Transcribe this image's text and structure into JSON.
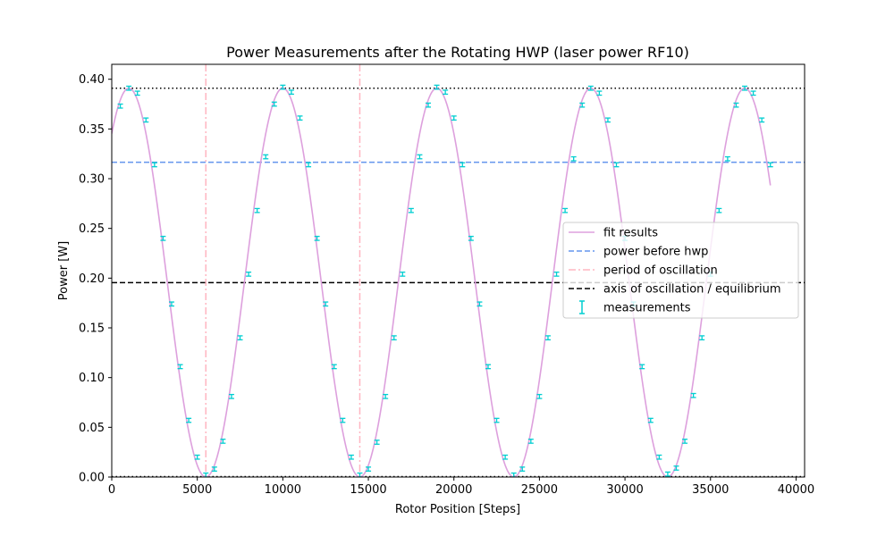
{
  "chart_data": {
    "type": "line",
    "title": "Power Measurements after the Rotating HWP (laser power RF10)",
    "xlabel": "Rotor Position [Steps]",
    "ylabel": "Power [W]",
    "xlim": [
      0,
      40500
    ],
    "ylim": [
      0,
      0.415
    ],
    "xticks": [
      0,
      5000,
      10000,
      15000,
      20000,
      25000,
      30000,
      35000,
      40000
    ],
    "yticks": [
      0.0,
      0.05,
      0.1,
      0.15,
      0.2,
      0.25,
      0.3,
      0.35,
      0.4
    ],
    "xtick_labels": [
      "0",
      "5000",
      "10000",
      "15000",
      "20000",
      "25000",
      "30000",
      "35000",
      "40000"
    ],
    "ytick_labels": [
      "0.00",
      "0.05",
      "0.10",
      "0.15",
      "0.20",
      "0.25",
      "0.30",
      "0.35",
      "0.40"
    ],
    "grid": false,
    "legend_position": "center-right",
    "fit": {
      "name": "fit results",
      "color": "#dda0dd",
      "model": "a*sin(2*pi*(x - phase)/period)+c",
      "amplitude": 0.1955,
      "offset": 0.1955,
      "period": 9000,
      "phase": -1250,
      "x_range": [
        0,
        38500
      ]
    },
    "hlines": [
      {
        "name": "power before hwp",
        "y": 0.3165,
        "color": "#6495ed",
        "style": "dashed"
      },
      {
        "name": "axis of oscillation / equilibrium",
        "y": 0.1955,
        "color": "#000000",
        "style": "dashed"
      },
      {
        "name": "",
        "y": 0.391,
        "color": "#000000",
        "style": "dotted"
      },
      {
        "name": "",
        "y": 0.0005,
        "color": "#000000",
        "style": "dotted"
      }
    ],
    "vlines": [
      {
        "name": "period of oscillation",
        "x": 5500,
        "color": "#ffb6c1",
        "style": "dashdot"
      },
      {
        "name": "",
        "x": 14500,
        "color": "#ffb6c1",
        "style": "dashdot"
      }
    ],
    "measurements": {
      "name": "measurements",
      "color": "#00ced1",
      "x": [
        500,
        1000,
        1500,
        2000,
        2500,
        3000,
        3500,
        4000,
        4500,
        5000,
        5500,
        6000,
        6500,
        7000,
        7500,
        8000,
        8500,
        9000,
        9500,
        10000,
        10500,
        11000,
        11500,
        12000,
        12500,
        13000,
        13500,
        14000,
        14500,
        15000,
        15500,
        16000,
        16500,
        17000,
        17500,
        18000,
        18500,
        19000,
        19500,
        20000,
        20500,
        21000,
        21500,
        22000,
        22500,
        23000,
        23500,
        24000,
        24500,
        25000,
        25500,
        26000,
        26500,
        27000,
        27500,
        28000,
        28500,
        29000,
        29500,
        30000,
        30500,
        31000,
        31500,
        32000,
        32500,
        33000,
        33500,
        34000,
        34500,
        35000,
        35500,
        36000,
        36500,
        37000,
        37500,
        38000,
        38500
      ],
      "y": [
        0.373,
        0.391,
        0.386,
        0.359,
        0.314,
        0.24,
        0.174,
        0.111,
        0.057,
        0.02,
        0.002,
        0.008,
        0.036,
        0.081,
        0.14,
        0.204,
        0.268,
        0.322,
        0.375,
        0.392,
        0.387,
        0.361,
        0.314,
        0.24,
        0.174,
        0.111,
        0.057,
        0.02,
        0.002,
        0.008,
        0.035,
        0.081,
        0.14,
        0.204,
        0.268,
        0.322,
        0.374,
        0.392,
        0.387,
        0.361,
        0.314,
        0.24,
        0.174,
        0.111,
        0.057,
        0.02,
        0.002,
        0.008,
        0.036,
        0.081,
        0.14,
        0.204,
        0.268,
        0.32,
        0.374,
        0.391,
        0.386,
        0.359,
        0.314,
        0.24,
        0.174,
        0.111,
        0.057,
        0.02,
        0.003,
        0.009,
        0.036,
        0.082,
        0.14,
        0.204,
        0.268,
        0.32,
        0.374,
        0.391,
        0.386,
        0.359,
        0.314
      ],
      "yerr": 0.002
    },
    "legend": [
      {
        "label": "fit results",
        "type": "line",
        "color": "#dda0dd",
        "style": "solid"
      },
      {
        "label": "power before hwp",
        "type": "line",
        "color": "#6495ed",
        "style": "dashed"
      },
      {
        "label": "period of oscillation",
        "type": "line",
        "color": "#ffb6c1",
        "style": "dashdot"
      },
      {
        "label": "axis of oscillation / equilibrium",
        "type": "line",
        "color": "#000000",
        "style": "dashed"
      },
      {
        "label": "measurements",
        "type": "errorbar",
        "color": "#00ced1",
        "style": "solid"
      }
    ]
  }
}
